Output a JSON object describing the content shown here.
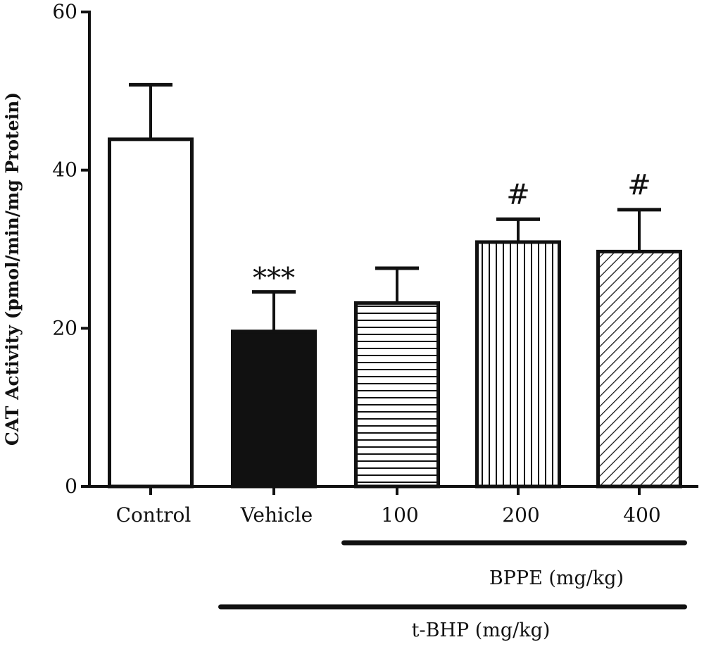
{
  "chart_data": {
    "type": "bar",
    "ylabel": "CAT Activity (pmol/min/mg Protein)",
    "xlabel": "",
    "ylim": [
      0,
      60
    ],
    "yticks": [
      0,
      20,
      40,
      60
    ],
    "categories": [
      "Control",
      "Vehicle",
      "100",
      "200",
      "400"
    ],
    "values": [
      43.9,
      19.6,
      23.2,
      30.9,
      29.7
    ],
    "errors": [
      6.9,
      5.0,
      4.4,
      2.9,
      5.3
    ],
    "fills": [
      "white",
      "black",
      "horizontal-lines",
      "vertical-lines",
      "diagonal-lines"
    ],
    "annotations": [
      "",
      "***",
      "",
      "#",
      "#"
    ],
    "groups": [
      {
        "label": "BPPE (mg/kg)",
        "from": "100",
        "to": "400"
      },
      {
        "label": "t-BHP (mg/kg)",
        "from": "Vehicle",
        "to": "400"
      }
    ],
    "grid": false,
    "legend": "none"
  }
}
